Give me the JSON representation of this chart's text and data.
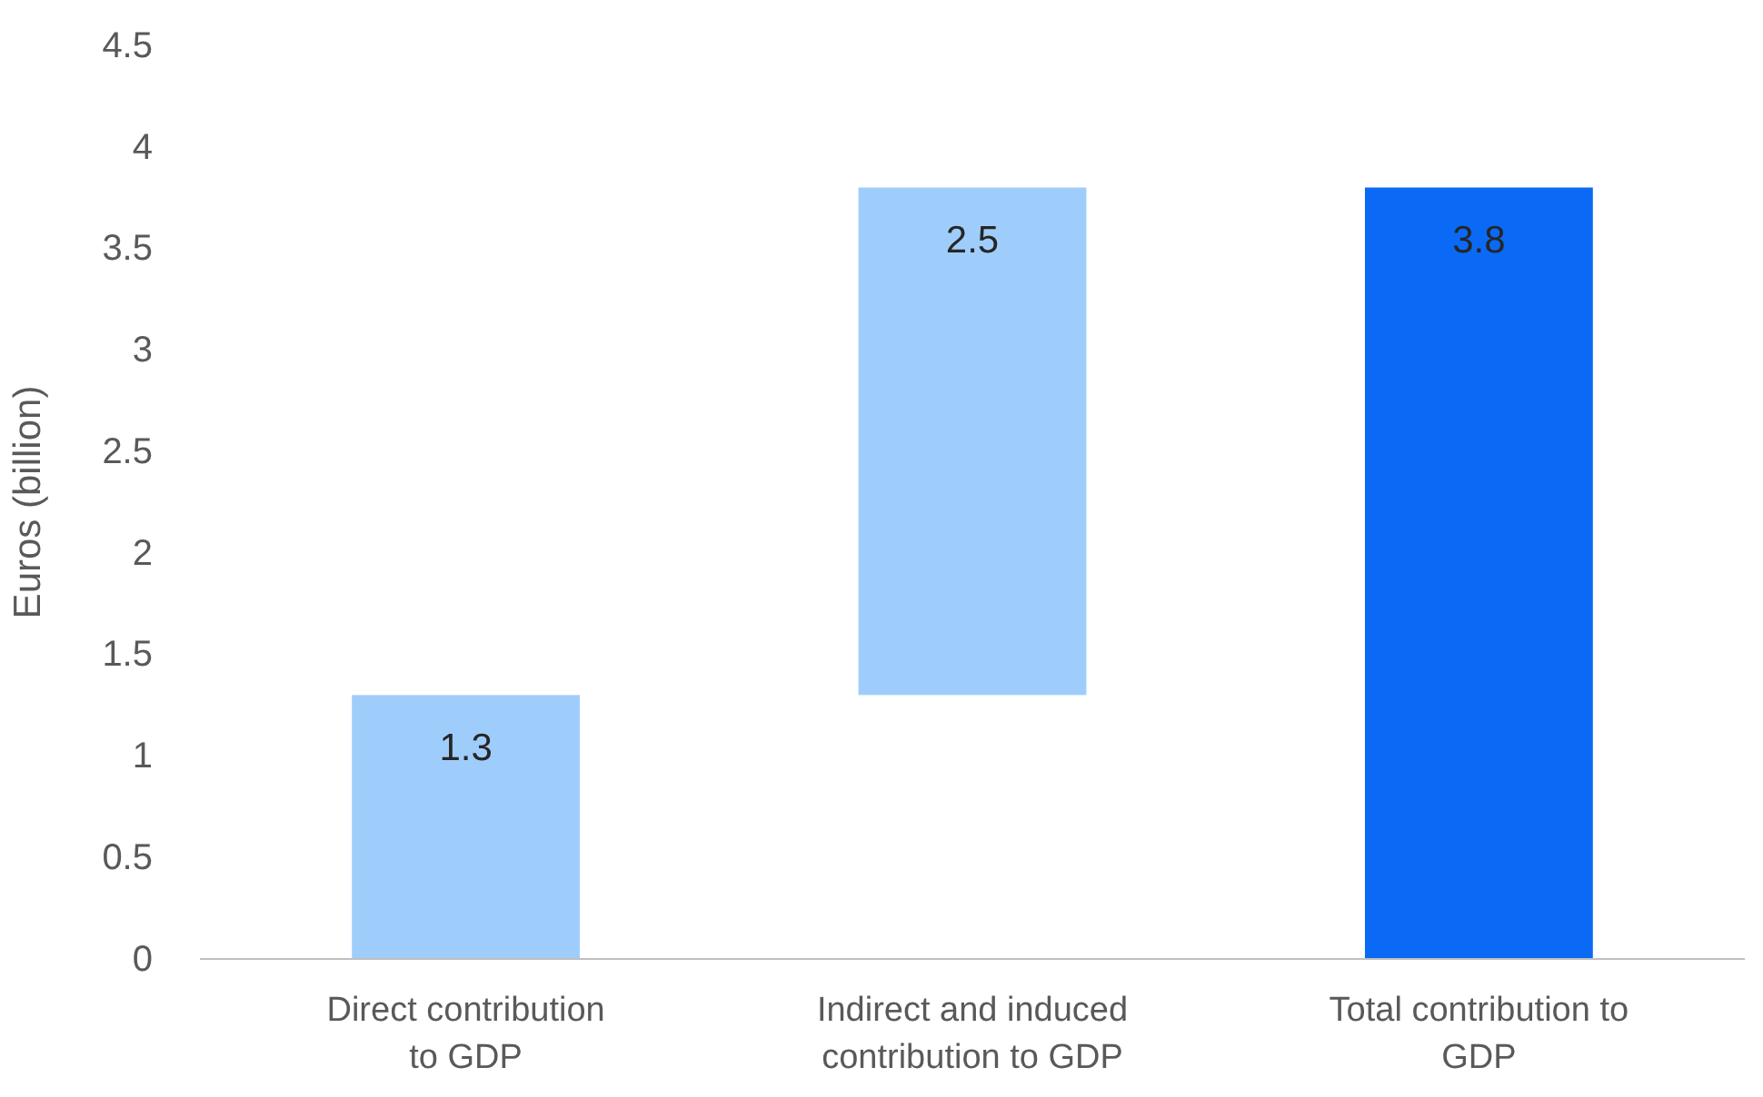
{
  "chart_data": {
    "type": "bar",
    "ylabel": "Euros (billion)",
    "categories": [
      "Direct contribution to GDP",
      "Indirect and induced contribution to GDP",
      "Total contribution to GDP"
    ],
    "values": [
      1.3,
      2.5,
      3.8
    ],
    "base": [
      0,
      1.3,
      0
    ],
    "colors": [
      "#9fcdfb",
      "#9fcdfb",
      "#0a6af5"
    ],
    "ylim": [
      0,
      4.5
    ],
    "yticks": [
      0,
      0.5,
      1,
      1.5,
      2,
      2.5,
      3,
      3.5,
      4,
      4.5
    ],
    "data_labels": true
  }
}
